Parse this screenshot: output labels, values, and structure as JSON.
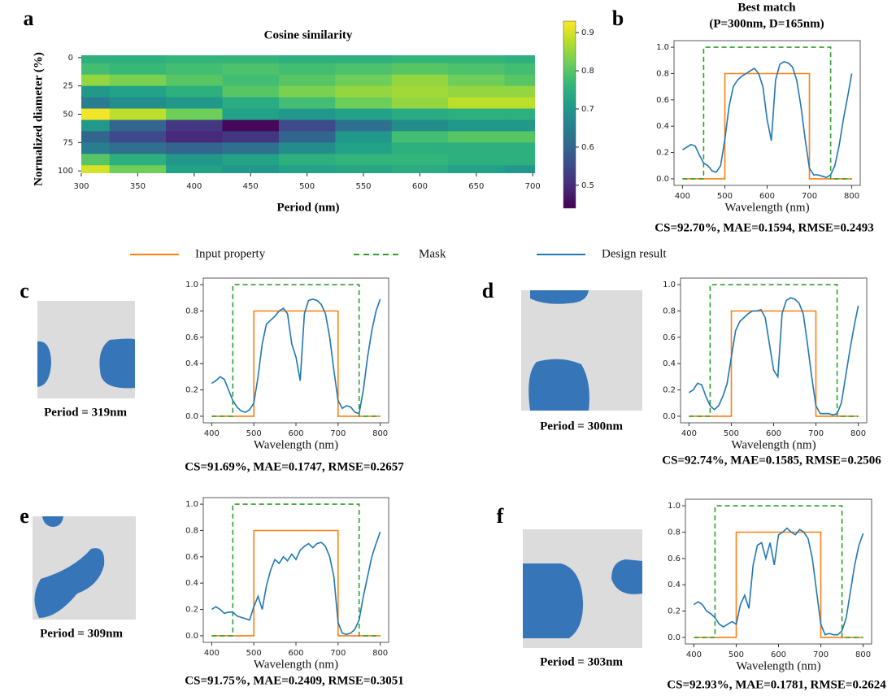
{
  "chart_data": [
    {
      "type": "heatmap",
      "panel": "a",
      "title": "Cosine similarity",
      "xlabel": "Period (nm)",
      "ylabel": "Normalized diameter (%)",
      "colormap": "viridis",
      "x": [
        300,
        350,
        400,
        450,
        500,
        550,
        600,
        650,
        700
      ],
      "y": [
        0,
        10,
        20,
        30,
        40,
        50,
        60,
        70,
        80,
        90,
        100
      ],
      "z": [
        [
          0.75,
          0.75,
          0.76,
          0.76,
          0.75,
          0.75,
          0.76,
          0.76,
          0.75
        ],
        [
          0.78,
          0.77,
          0.78,
          0.79,
          0.78,
          0.79,
          0.8,
          0.79,
          0.78
        ],
        [
          0.85,
          0.83,
          0.8,
          0.78,
          0.8,
          0.82,
          0.85,
          0.82,
          0.8
        ],
        [
          0.7,
          0.72,
          0.75,
          0.8,
          0.83,
          0.85,
          0.86,
          0.85,
          0.85
        ],
        [
          0.65,
          0.68,
          0.7,
          0.74,
          0.78,
          0.82,
          0.85,
          0.88,
          0.88
        ],
        [
          0.92,
          0.88,
          0.82,
          0.72,
          0.7,
          0.72,
          0.74,
          0.75,
          0.75
        ],
        [
          0.7,
          0.6,
          0.52,
          0.45,
          0.55,
          0.62,
          0.68,
          0.7,
          0.7
        ],
        [
          0.6,
          0.55,
          0.5,
          0.52,
          0.6,
          0.7,
          0.78,
          0.8,
          0.8
        ],
        [
          0.65,
          0.62,
          0.6,
          0.62,
          0.68,
          0.72,
          0.75,
          0.75,
          0.75
        ],
        [
          0.8,
          0.75,
          0.7,
          0.72,
          0.75,
          0.76,
          0.76,
          0.75,
          0.75
        ],
        [
          0.9,
          0.82,
          0.72,
          0.7,
          0.72,
          0.73,
          0.74,
          0.72,
          0.7
        ]
      ],
      "xlim": [
        300,
        702
      ],
      "ylim": [
        -2,
        102
      ],
      "xticks": [
        300,
        350,
        400,
        450,
        500,
        550,
        600,
        650,
        700
      ],
      "yticks": [
        0,
        25,
        50,
        75,
        100
      ],
      "clim": [
        0.44,
        0.93
      ],
      "cticks": [
        0.5,
        0.6,
        0.7,
        0.8,
        0.9
      ]
    },
    {
      "type": "line",
      "panel": "b",
      "title": "Best match",
      "subtitle": "(P=300nm, D=165nm)",
      "xlabel": "Wavelength (nm)",
      "metrics": "CS=92.70%, MAE=0.1594, RMSE=0.2493",
      "xlim": [
        380,
        820
      ],
      "ylim": [
        -0.05,
        1.05
      ],
      "xticks": [
        400,
        500,
        600,
        700,
        800
      ],
      "yticks": [
        {
          "value": 0,
          "label": "0.0"
        },
        0.2,
        0.4,
        0.6,
        0.8,
        {
          "value": 1,
          "label": "1.0"
        }
      ],
      "series": [
        {
          "name": "Input property",
          "color": "#ff7f0e",
          "x": [
            400,
            500,
            500,
            700,
            700,
            800
          ],
          "values": [
            0,
            0,
            0.8,
            0.8,
            0,
            0
          ]
        },
        {
          "name": "Mask",
          "color": "#2ca02c",
          "linestyle": "dashed",
          "x": [
            400,
            450,
            450,
            750,
            750,
            800
          ],
          "values": [
            0,
            0,
            1,
            1,
            0,
            0
          ]
        },
        {
          "name": "Design result",
          "color": "#1f77b4",
          "x": [
            400,
            410,
            420,
            430,
            440,
            450,
            460,
            470,
            480,
            490,
            500,
            510,
            520,
            530,
            540,
            550,
            560,
            570,
            580,
            590,
            600,
            610,
            620,
            630,
            640,
            650,
            660,
            670,
            680,
            690,
            700,
            710,
            720,
            730,
            740,
            750,
            760,
            770,
            780,
            790,
            800
          ],
          "values": [
            0.22,
            0.24,
            0.26,
            0.25,
            0.18,
            0.12,
            0.1,
            0.06,
            0.05,
            0.1,
            0.3,
            0.55,
            0.7,
            0.75,
            0.78,
            0.8,
            0.82,
            0.84,
            0.8,
            0.7,
            0.45,
            0.29,
            0.75,
            0.87,
            0.89,
            0.88,
            0.85,
            0.75,
            0.55,
            0.3,
            0.08,
            0.03,
            0.03,
            0.02,
            0.01,
            0.03,
            0.1,
            0.25,
            0.45,
            0.62,
            0.8
          ]
        }
      ]
    },
    {
      "type": "line",
      "panel": "c",
      "period_label": "Period = 319nm",
      "xlabel": "Wavelength (nm)",
      "metrics": "CS=91.69%, MAE=0.1747, RMSE=0.2657",
      "xlim": [
        380,
        820
      ],
      "ylim": [
        -0.05,
        1.05
      ],
      "xticks": [
        400,
        500,
        600,
        700,
        800
      ],
      "yticks": [
        {
          "value": 0,
          "label": "0.0"
        },
        0.2,
        0.4,
        0.6,
        0.8,
        {
          "value": 1,
          "label": "1.0"
        }
      ],
      "series": [
        {
          "color": "#ff7f0e",
          "x": [
            400,
            500,
            500,
            700,
            700,
            800
          ],
          "values": [
            0,
            0,
            0.8,
            0.8,
            0,
            0
          ]
        },
        {
          "color": "#2ca02c",
          "linestyle": "dashed",
          "x": [
            400,
            450,
            450,
            750,
            750,
            800
          ],
          "values": [
            0,
            0,
            1,
            1,
            0,
            0
          ]
        },
        {
          "color": "#1f77b4",
          "x": [
            400,
            410,
            420,
            430,
            440,
            450,
            460,
            470,
            480,
            490,
            500,
            510,
            520,
            530,
            540,
            550,
            560,
            570,
            580,
            590,
            600,
            610,
            620,
            630,
            640,
            650,
            660,
            670,
            680,
            690,
            700,
            710,
            720,
            730,
            740,
            750,
            760,
            770,
            780,
            790,
            800
          ],
          "values": [
            0.25,
            0.27,
            0.3,
            0.28,
            0.2,
            0.12,
            0.07,
            0.04,
            0.03,
            0.05,
            0.1,
            0.3,
            0.55,
            0.7,
            0.73,
            0.76,
            0.8,
            0.82,
            0.78,
            0.55,
            0.45,
            0.27,
            0.78,
            0.88,
            0.89,
            0.88,
            0.85,
            0.78,
            0.6,
            0.35,
            0.12,
            0.06,
            0.08,
            0.07,
            0.03,
            0.02,
            0.2,
            0.45,
            0.65,
            0.8,
            0.89
          ]
        }
      ]
    },
    {
      "type": "line",
      "panel": "d",
      "period_label": "Period = 300nm",
      "xlabel": "Wavelength (nm)",
      "metrics": "CS=92.74%, MAE=0.1585, RMSE=0.2506",
      "xlim": [
        380,
        820
      ],
      "ylim": [
        -0.05,
        1.05
      ],
      "xticks": [
        400,
        500,
        600,
        700,
        800
      ],
      "yticks": [
        {
          "value": 0,
          "label": "0.0"
        },
        0.2,
        0.4,
        0.6,
        0.8,
        {
          "value": 1,
          "label": "1.0"
        }
      ],
      "series": [
        {
          "color": "#ff7f0e",
          "x": [
            400,
            500,
            500,
            700,
            700,
            800
          ],
          "values": [
            0,
            0,
            0.8,
            0.8,
            0,
            0
          ]
        },
        {
          "color": "#2ca02c",
          "linestyle": "dashed",
          "x": [
            400,
            450,
            450,
            750,
            750,
            800
          ],
          "values": [
            0,
            0,
            1,
            1,
            0,
            0
          ]
        },
        {
          "color": "#1f77b4",
          "x": [
            400,
            410,
            420,
            430,
            440,
            450,
            460,
            470,
            480,
            490,
            500,
            510,
            520,
            530,
            540,
            550,
            560,
            570,
            580,
            590,
            600,
            610,
            620,
            630,
            640,
            650,
            660,
            670,
            680,
            690,
            700,
            710,
            720,
            730,
            740,
            750,
            760,
            770,
            780,
            790,
            800
          ],
          "values": [
            0.18,
            0.2,
            0.25,
            0.24,
            0.15,
            0.08,
            0.05,
            0.08,
            0.15,
            0.25,
            0.45,
            0.65,
            0.72,
            0.75,
            0.78,
            0.8,
            0.8,
            0.81,
            0.75,
            0.55,
            0.35,
            0.3,
            0.78,
            0.88,
            0.9,
            0.89,
            0.86,
            0.78,
            0.55,
            0.3,
            0.08,
            0.02,
            0.02,
            0.02,
            0.01,
            0.02,
            0.1,
            0.3,
            0.5,
            0.68,
            0.84
          ]
        }
      ]
    },
    {
      "type": "line",
      "panel": "e",
      "period_label": "Period = 309nm",
      "xlabel": "Wavelength (nm)",
      "metrics": "CS=91.75%, MAE=0.2409, RMSE=0.3051",
      "xlim": [
        380,
        820
      ],
      "ylim": [
        -0.05,
        1.05
      ],
      "xticks": [
        400,
        500,
        600,
        700,
        800
      ],
      "yticks": [
        {
          "value": 0,
          "label": "0.0"
        },
        0.2,
        0.4,
        0.6,
        0.8,
        {
          "value": 1,
          "label": "1.0"
        }
      ],
      "series": [
        {
          "color": "#ff7f0e",
          "x": [
            400,
            500,
            500,
            700,
            700,
            800
          ],
          "values": [
            0,
            0,
            0.8,
            0.8,
            0,
            0
          ]
        },
        {
          "color": "#2ca02c",
          "linestyle": "dashed",
          "x": [
            400,
            450,
            450,
            750,
            750,
            800
          ],
          "values": [
            0,
            0,
            1,
            1,
            0,
            0
          ]
        },
        {
          "color": "#1f77b4",
          "x": [
            400,
            410,
            420,
            430,
            440,
            450,
            460,
            470,
            480,
            490,
            500,
            510,
            520,
            530,
            540,
            550,
            560,
            570,
            580,
            590,
            600,
            610,
            620,
            630,
            640,
            650,
            660,
            670,
            680,
            690,
            700,
            710,
            720,
            730,
            740,
            750,
            760,
            770,
            780,
            790,
            800
          ],
          "values": [
            0.2,
            0.22,
            0.2,
            0.17,
            0.18,
            0.18,
            0.15,
            0.14,
            0.13,
            0.12,
            0.22,
            0.3,
            0.2,
            0.38,
            0.5,
            0.58,
            0.55,
            0.6,
            0.57,
            0.62,
            0.58,
            0.65,
            0.68,
            0.7,
            0.67,
            0.7,
            0.71,
            0.68,
            0.6,
            0.45,
            0.1,
            0.02,
            0.01,
            0.02,
            0.05,
            0.12,
            0.3,
            0.45,
            0.6,
            0.7,
            0.79
          ]
        }
      ]
    },
    {
      "type": "line",
      "panel": "f",
      "period_label": "Period = 303nm",
      "xlabel": "Wavelength (nm)",
      "metrics": "CS=92.93%, MAE=0.1781, RMSE=0.2624",
      "xlim": [
        380,
        820
      ],
      "ylim": [
        -0.05,
        1.05
      ],
      "xticks": [
        400,
        500,
        600,
        700,
        800
      ],
      "yticks": [
        {
          "value": 0,
          "label": "0.0"
        },
        0.2,
        0.4,
        0.6,
        0.8,
        {
          "value": 1,
          "label": "1.0"
        }
      ],
      "series": [
        {
          "color": "#ff7f0e",
          "x": [
            400,
            500,
            500,
            700,
            700,
            800
          ],
          "values": [
            0,
            0,
            0.8,
            0.8,
            0,
            0
          ]
        },
        {
          "color": "#2ca02c",
          "linestyle": "dashed",
          "x": [
            400,
            450,
            450,
            750,
            750,
            800
          ],
          "values": [
            0,
            0,
            1,
            1,
            0,
            0
          ]
        },
        {
          "color": "#1f77b4",
          "x": [
            400,
            410,
            420,
            430,
            440,
            450,
            460,
            470,
            480,
            490,
            500,
            510,
            520,
            530,
            540,
            550,
            560,
            570,
            580,
            590,
            600,
            610,
            620,
            630,
            640,
            650,
            660,
            670,
            680,
            690,
            700,
            710,
            720,
            730,
            740,
            750,
            760,
            770,
            780,
            790,
            800
          ],
          "values": [
            0.25,
            0.27,
            0.25,
            0.2,
            0.18,
            0.15,
            0.1,
            0.08,
            0.1,
            0.12,
            0.1,
            0.25,
            0.32,
            0.22,
            0.55,
            0.7,
            0.72,
            0.6,
            0.72,
            0.55,
            0.78,
            0.8,
            0.83,
            0.8,
            0.78,
            0.82,
            0.8,
            0.75,
            0.6,
            0.35,
            0.1,
            0.02,
            0.03,
            0.02,
            0.02,
            0.05,
            0.15,
            0.35,
            0.55,
            0.7,
            0.79
          ]
        }
      ]
    }
  ]
}
